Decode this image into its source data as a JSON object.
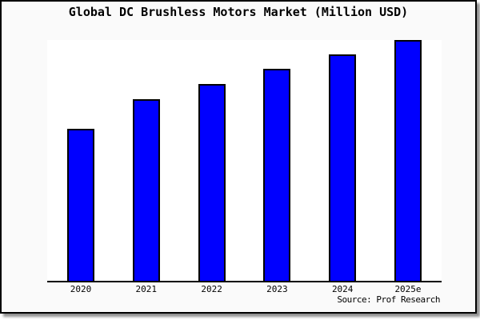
{
  "chart_data": {
    "type": "bar",
    "title": "Global DC Brushless Motors Market (Million USD)",
    "categories": [
      "2020",
      "2021",
      "2022",
      "2023",
      "2024",
      "2025e"
    ],
    "values": [
      63.1,
      75.4,
      81.7,
      88.0,
      94.0,
      100.0
    ],
    "value_note": "y-axis has no tick labels; values are relative estimates from bar heights, normalized so the 2025e bar = 100",
    "xlabel": "",
    "ylabel": "",
    "ylim": [
      0,
      100
    ],
    "grid": false,
    "legend": null,
    "bar_color": "#0000ff",
    "bar_border_color": "#000000",
    "source": "Source: Prof Research"
  },
  "frame": {
    "background": "#fafafa",
    "plot_background": "#ffffff",
    "border_color": "#000000"
  }
}
